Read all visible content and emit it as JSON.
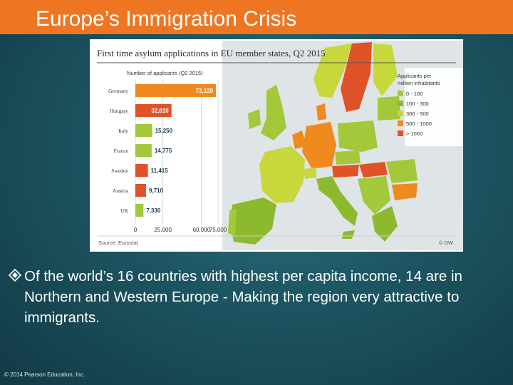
{
  "slide": {
    "title": "Europe’s Immigration Crisis",
    "bullet": "Of the world’s 16 countries with highest per capita income, 14 are in Northern and Western Europe - Making the region very attractive to immigrants.",
    "footer": "© 2014 Pearson Education, Inc."
  },
  "colors": {
    "title_bar": "#ee7623",
    "scale": [
      "#a3c83a",
      "#8db92e",
      "#c8d83c",
      "#ef8a1f",
      "#e05227"
    ]
  },
  "chart_data": {
    "type": "bar",
    "orientation": "horizontal",
    "title": "First time asylum applications in EU member states, Q2 2015",
    "subtitle": "Number of applicants  (Q2 2015)",
    "categories": [
      "Germany",
      "Hungary",
      "Italy",
      "France",
      "Sweden",
      "Austria",
      "UK"
    ],
    "values": [
      73120,
      32810,
      15250,
      14775,
      11415,
      9710,
      7330
    ],
    "value_labels": [
      "73,120",
      "32,810",
      "15,250",
      "14,775",
      "11,415",
      "9,710",
      "7,330"
    ],
    "bar_colors": [
      "#ef8a1f",
      "#e05227",
      "#a3c83a",
      "#a3c83a",
      "#e05227",
      "#e05227",
      "#a3c83a"
    ],
    "xlim": [
      0,
      75000
    ],
    "xticks": [
      0,
      25000,
      60000,
      75000
    ],
    "xtick_labels": [
      "0",
      "25,000",
      "60,000",
      "75,000"
    ],
    "grid": true,
    "source": "Source: Eurostat",
    "credit": "© DW",
    "legend": {
      "title": "Applicants per million inhabitants",
      "placement": "top-right",
      "items": [
        {
          "label": "0 - 100",
          "color": "#a3c83a"
        },
        {
          "label": "100 - 300",
          "color": "#8db92e"
        },
        {
          "label": "300 - 500",
          "color": "#c8d83c"
        },
        {
          "label": "500 - 1000",
          "color": "#ef8a1f"
        },
        {
          "label": "> 1000",
          "color": "#e05227"
        }
      ]
    }
  }
}
